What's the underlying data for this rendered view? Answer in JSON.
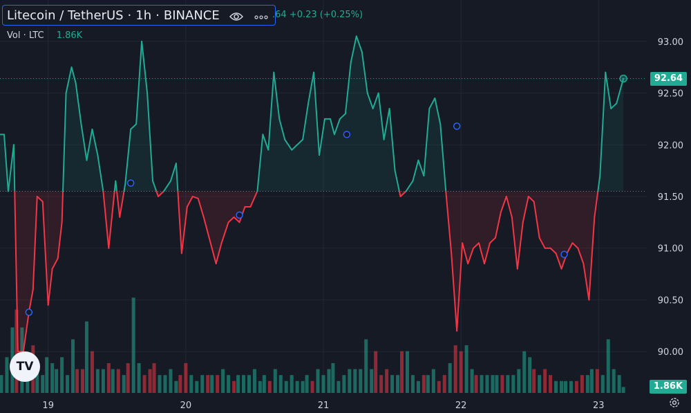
{
  "header": {
    "pair": "Litecoin / TetherUS",
    "interval": "1h",
    "exchange": "BINANCE",
    "price_change_text": ".64 +0.23 (+0.25%)",
    "icons": [
      "eye-icon",
      "more-dots-icon"
    ]
  },
  "volume_legend": {
    "label": "Vol · LTC",
    "value": "1.86K"
  },
  "badges": {
    "last_price": "92.64",
    "last_volume": "1.86K",
    "price_color": "#22ab94",
    "volume_color": "#22ab94"
  },
  "logo_text": "TV",
  "colors": {
    "up": "#22ab94",
    "down": "#f23645",
    "up_fill": "rgba(34,171,148,0.10)",
    "down_fill": "rgba(242,54,69,0.12)",
    "vol_up": "#22ab94",
    "vol_down": "#f23645",
    "grid": "#222634",
    "marker": "#2962ff"
  },
  "chart_data": {
    "type": "line",
    "title": "Litecoin / TetherUS · 1h · BINANCE",
    "baseline": 91.55,
    "last_value": 92.64,
    "ylim": [
      89.6,
      93.4
    ],
    "y_ticks": [
      90.0,
      90.5,
      91.0,
      91.5,
      92.0,
      92.5,
      93.0
    ],
    "y_tick_labels": [
      "90.00",
      "90.50",
      "91.00",
      "91.50",
      "92.00",
      "92.50",
      "93.00"
    ],
    "x_range": [
      18.65,
      23.35
    ],
    "x_ticks": [
      19,
      20,
      21,
      22,
      23
    ],
    "x_tick_labels": [
      "19",
      "20",
      "21",
      "22",
      "23"
    ],
    "grid": true,
    "series": [
      {
        "values": [
          [
            18.65,
            92.1
          ],
          [
            18.68,
            92.1
          ],
          [
            18.71,
            91.55
          ],
          [
            18.75,
            92.0
          ],
          [
            18.78,
            90.0
          ],
          [
            18.82,
            90.0
          ],
          [
            18.86,
            90.38
          ],
          [
            18.89,
            90.6
          ],
          [
            18.92,
            91.5
          ],
          [
            18.96,
            91.45
          ],
          [
            19.0,
            90.45
          ],
          [
            19.03,
            90.8
          ],
          [
            19.07,
            90.9
          ],
          [
            19.1,
            91.25
          ],
          [
            19.13,
            92.5
          ],
          [
            19.17,
            92.75
          ],
          [
            19.2,
            92.6
          ],
          [
            19.24,
            92.2
          ],
          [
            19.28,
            91.85
          ],
          [
            19.32,
            92.15
          ],
          [
            19.36,
            91.9
          ],
          [
            19.4,
            91.55
          ],
          [
            19.44,
            91.0
          ],
          [
            19.49,
            91.65
          ],
          [
            19.52,
            91.3
          ],
          [
            19.56,
            91.62
          ],
          [
            19.6,
            92.15
          ],
          [
            19.64,
            92.2
          ],
          [
            19.68,
            93.0
          ],
          [
            19.72,
            92.5
          ],
          [
            19.76,
            91.65
          ],
          [
            19.8,
            91.5
          ],
          [
            19.84,
            91.55
          ],
          [
            19.89,
            91.65
          ],
          [
            19.93,
            91.82
          ],
          [
            19.97,
            90.95
          ],
          [
            20.01,
            91.4
          ],
          [
            20.05,
            91.5
          ],
          [
            20.09,
            91.48
          ],
          [
            20.13,
            91.3
          ],
          [
            20.18,
            91.05
          ],
          [
            20.22,
            90.85
          ],
          [
            20.26,
            91.05
          ],
          [
            20.31,
            91.25
          ],
          [
            20.35,
            91.3
          ],
          [
            20.39,
            91.25
          ],
          [
            20.43,
            91.4
          ],
          [
            20.47,
            91.4
          ],
          [
            20.52,
            91.55
          ],
          [
            20.56,
            92.1
          ],
          [
            20.6,
            91.95
          ],
          [
            20.64,
            92.7
          ],
          [
            20.68,
            92.25
          ],
          [
            20.72,
            92.05
          ],
          [
            20.77,
            91.95
          ],
          [
            20.81,
            92.0
          ],
          [
            20.85,
            92.05
          ],
          [
            20.89,
            92.4
          ],
          [
            20.93,
            92.7
          ],
          [
            20.97,
            91.9
          ],
          [
            21.01,
            92.25
          ],
          [
            21.05,
            92.25
          ],
          [
            21.08,
            92.1
          ],
          [
            21.12,
            92.25
          ],
          [
            21.16,
            92.3
          ],
          [
            21.2,
            92.8
          ],
          [
            21.24,
            93.05
          ],
          [
            21.28,
            92.9
          ],
          [
            21.32,
            92.5
          ],
          [
            21.36,
            92.35
          ],
          [
            21.4,
            92.5
          ],
          [
            21.44,
            92.05
          ],
          [
            21.48,
            92.35
          ],
          [
            21.52,
            91.75
          ],
          [
            21.56,
            91.5
          ],
          [
            21.6,
            91.55
          ],
          [
            21.65,
            91.65
          ],
          [
            21.69,
            91.85
          ],
          [
            21.73,
            91.7
          ],
          [
            21.77,
            92.35
          ],
          [
            21.81,
            92.45
          ],
          [
            21.85,
            92.2
          ],
          [
            21.89,
            91.55
          ],
          [
            21.93,
            90.95
          ],
          [
            21.97,
            90.2
          ],
          [
            22.01,
            91.05
          ],
          [
            22.05,
            90.85
          ],
          [
            22.09,
            91.0
          ],
          [
            22.13,
            91.05
          ],
          [
            22.17,
            90.85
          ],
          [
            22.21,
            91.05
          ],
          [
            22.25,
            91.1
          ],
          [
            22.29,
            91.35
          ],
          [
            22.33,
            91.5
          ],
          [
            22.37,
            91.3
          ],
          [
            22.41,
            90.8
          ],
          [
            22.45,
            91.25
          ],
          [
            22.49,
            91.5
          ],
          [
            22.53,
            91.45
          ],
          [
            22.57,
            91.1
          ],
          [
            22.61,
            91.0
          ],
          [
            22.65,
            91.0
          ],
          [
            22.69,
            90.95
          ],
          [
            22.73,
            90.8
          ],
          [
            22.77,
            90.95
          ],
          [
            22.81,
            91.05
          ],
          [
            22.85,
            91.0
          ],
          [
            22.89,
            90.85
          ],
          [
            22.93,
            90.5
          ],
          [
            22.97,
            91.3
          ],
          [
            23.01,
            91.7
          ],
          [
            23.05,
            92.7
          ],
          [
            23.09,
            92.35
          ],
          [
            23.13,
            92.4
          ],
          [
            23.18,
            92.64
          ]
        ]
      }
    ],
    "markers": [
      [
        18.86,
        90.38
      ],
      [
        19.6,
        91.63
      ],
      [
        20.39,
        91.32
      ],
      [
        21.17,
        92.1
      ],
      [
        21.97,
        92.18
      ],
      [
        22.75,
        90.94
      ]
    ],
    "volume": {
      "name": "Vol · LTC",
      "last": 1.86,
      "max_k": 18,
      "bars": [
        [
          18.66,
          3,
          "u"
        ],
        [
          18.7,
          6,
          "u"
        ],
        [
          18.74,
          11,
          "u"
        ],
        [
          18.77,
          14,
          "d"
        ],
        [
          18.81,
          11,
          "u"
        ],
        [
          18.85,
          6,
          "u"
        ],
        [
          18.89,
          8,
          "d"
        ],
        [
          18.92,
          5,
          "u"
        ],
        [
          18.96,
          3,
          "u"
        ],
        [
          18.99,
          6,
          "u"
        ],
        [
          19.03,
          5,
          "u"
        ],
        [
          19.06,
          4,
          "u"
        ],
        [
          19.1,
          6,
          "u"
        ],
        [
          19.14,
          3,
          "u"
        ],
        [
          19.18,
          9,
          "u"
        ],
        [
          19.21,
          4,
          "d"
        ],
        [
          19.25,
          4,
          "d"
        ],
        [
          19.28,
          12,
          "u"
        ],
        [
          19.32,
          7,
          "d"
        ],
        [
          19.36,
          4,
          "u"
        ],
        [
          19.4,
          4,
          "u"
        ],
        [
          19.44,
          5,
          "d"
        ],
        [
          19.47,
          4,
          "u"
        ],
        [
          19.51,
          4,
          "d"
        ],
        [
          19.55,
          3,
          "u"
        ],
        [
          19.58,
          5,
          "d"
        ],
        [
          19.62,
          16,
          "u"
        ],
        [
          19.66,
          5,
          "u"
        ],
        [
          19.7,
          3,
          "d"
        ],
        [
          19.74,
          4,
          "d"
        ],
        [
          19.77,
          5,
          "d"
        ],
        [
          19.81,
          3,
          "u"
        ],
        [
          19.85,
          3,
          "u"
        ],
        [
          19.89,
          4,
          "u"
        ],
        [
          19.93,
          2,
          "u"
        ],
        [
          19.96,
          3,
          "d"
        ],
        [
          20.0,
          5,
          "d"
        ],
        [
          20.04,
          3,
          "u"
        ],
        [
          20.08,
          2,
          "u"
        ],
        [
          20.12,
          3,
          "u"
        ],
        [
          20.16,
          3,
          "d"
        ],
        [
          20.19,
          3,
          "u"
        ],
        [
          20.23,
          3,
          "d"
        ],
        [
          20.27,
          4,
          "u"
        ],
        [
          20.31,
          3,
          "u"
        ],
        [
          20.35,
          2,
          "d"
        ],
        [
          20.38,
          3,
          "u"
        ],
        [
          20.42,
          3,
          "u"
        ],
        [
          20.46,
          3,
          "u"
        ],
        [
          20.5,
          4,
          "u"
        ],
        [
          20.54,
          2,
          "u"
        ],
        [
          20.57,
          3,
          "u"
        ],
        [
          20.61,
          2,
          "d"
        ],
        [
          20.65,
          4,
          "u"
        ],
        [
          20.69,
          3,
          "u"
        ],
        [
          20.73,
          2,
          "u"
        ],
        [
          20.77,
          3,
          "u"
        ],
        [
          20.81,
          2,
          "u"
        ],
        [
          20.85,
          2,
          "u"
        ],
        [
          20.88,
          3,
          "u"
        ],
        [
          20.92,
          2,
          "d"
        ],
        [
          20.96,
          4,
          "u"
        ],
        [
          21.0,
          3,
          "u"
        ],
        [
          21.04,
          4,
          "u"
        ],
        [
          21.07,
          5,
          "u"
        ],
        [
          21.11,
          2,
          "u"
        ],
        [
          21.15,
          3,
          "u"
        ],
        [
          21.19,
          4,
          "u"
        ],
        [
          21.23,
          4,
          "u"
        ],
        [
          21.27,
          4,
          "u"
        ],
        [
          21.31,
          9,
          "u"
        ],
        [
          21.35,
          4,
          "u"
        ],
        [
          21.38,
          7,
          "d"
        ],
        [
          21.42,
          3,
          "d"
        ],
        [
          21.46,
          4,
          "d"
        ],
        [
          21.5,
          3,
          "u"
        ],
        [
          21.54,
          3,
          "u"
        ],
        [
          21.57,
          7,
          "d"
        ],
        [
          21.61,
          7,
          "u"
        ],
        [
          21.65,
          3,
          "u"
        ],
        [
          21.69,
          2,
          "u"
        ],
        [
          21.73,
          3,
          "d"
        ],
        [
          21.76,
          3,
          "u"
        ],
        [
          21.8,
          4,
          "u"
        ],
        [
          21.84,
          2,
          "d"
        ],
        [
          21.88,
          3,
          "d"
        ],
        [
          21.92,
          5,
          "u"
        ],
        [
          21.96,
          8,
          "d"
        ],
        [
          22.0,
          7,
          "d"
        ],
        [
          22.04,
          8,
          "u"
        ],
        [
          22.08,
          4,
          "u"
        ],
        [
          22.11,
          3,
          "d"
        ],
        [
          22.15,
          3,
          "u"
        ],
        [
          22.19,
          3,
          "u"
        ],
        [
          22.23,
          3,
          "u"
        ],
        [
          22.26,
          3,
          "u"
        ],
        [
          22.3,
          3,
          "d"
        ],
        [
          22.34,
          3,
          "u"
        ],
        [
          22.38,
          3,
          "u"
        ],
        [
          22.42,
          4,
          "u"
        ],
        [
          22.46,
          7,
          "u"
        ],
        [
          22.5,
          6,
          "u"
        ],
        [
          22.53,
          4,
          "d"
        ],
        [
          22.57,
          3,
          "u"
        ],
        [
          22.61,
          4,
          "d"
        ],
        [
          22.65,
          3,
          "d"
        ],
        [
          22.69,
          2,
          "u"
        ],
        [
          22.73,
          2,
          "u"
        ],
        [
          22.76,
          2,
          "u"
        ],
        [
          22.8,
          2,
          "u"
        ],
        [
          22.84,
          2,
          "d"
        ],
        [
          22.88,
          3,
          "d"
        ],
        [
          22.92,
          3,
          "u"
        ],
        [
          22.95,
          4,
          "u"
        ],
        [
          22.99,
          4,
          "d"
        ],
        [
          23.03,
          3,
          "u"
        ],
        [
          23.07,
          9,
          "u"
        ],
        [
          23.11,
          4,
          "u"
        ],
        [
          23.15,
          3,
          "u"
        ],
        [
          23.18,
          1,
          "u"
        ]
      ]
    }
  }
}
